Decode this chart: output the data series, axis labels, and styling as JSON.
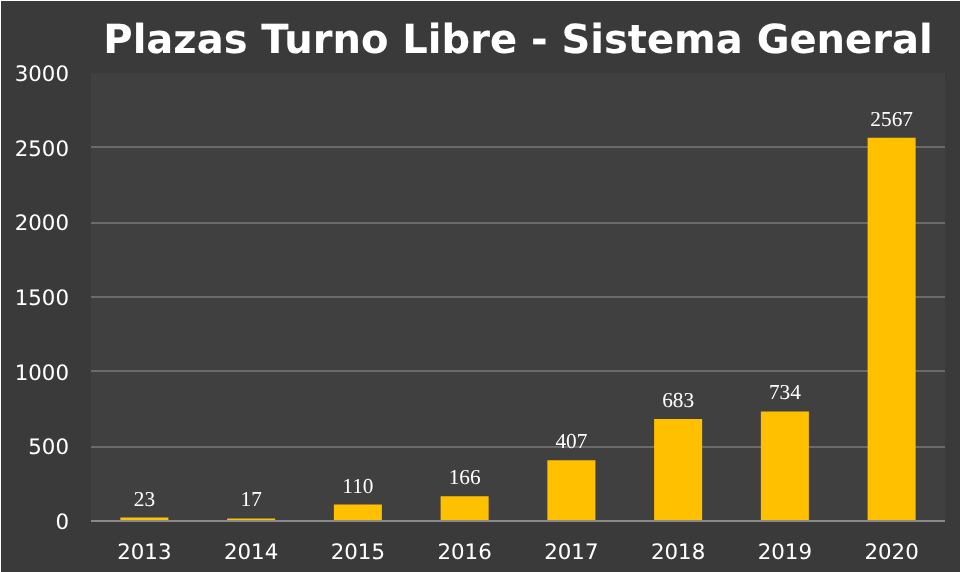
{
  "chart_data": {
    "type": "bar",
    "title": "Plazas Turno Libre - Sistema General",
    "categories": [
      "2013",
      "2014",
      "2015",
      "2016",
      "2017",
      "2018",
      "2019",
      "2020"
    ],
    "values": [
      23,
      17,
      110,
      166,
      407,
      683,
      734,
      2567
    ],
    "color": "#ffc000",
    "ylim": [
      0,
      3000
    ],
    "yticks": [
      0,
      500,
      1000,
      1500,
      2000,
      2500,
      3000
    ],
    "grid": "y",
    "data_labels": true
  }
}
